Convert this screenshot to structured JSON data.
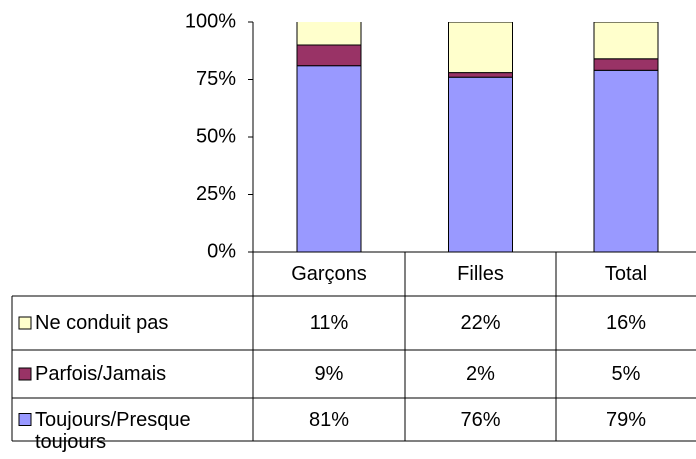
{
  "chart_data": {
    "type": "stacked_bar",
    "categories": [
      "Garçons",
      "Filles",
      "Total"
    ],
    "series": [
      {
        "name": "Ne conduit pas",
        "color": "#ffffcc",
        "values": [
          11,
          22,
          16
        ],
        "value_labels": [
          "11%",
          "22%",
          "16%"
        ]
      },
      {
        "name": "Parfois/Jamais",
        "color": "#993366",
        "values": [
          9,
          2,
          5
        ],
        "value_labels": [
          "9%",
          "2%",
          "5%"
        ]
      },
      {
        "name": "Toujours/Presque toujours",
        "color": "#9999ff",
        "values": [
          81,
          76,
          79
        ],
        "value_labels": [
          "81%",
          "76%",
          "79%"
        ]
      }
    ],
    "ylim": [
      0,
      100
    ],
    "yticks": [
      {
        "value": 0,
        "label": "0%"
      },
      {
        "value": 25,
        "label": "25%"
      },
      {
        "value": 50,
        "label": "50%"
      },
      {
        "value": 75,
        "label": "75%"
      },
      {
        "value": 100,
        "label": "100%"
      }
    ]
  }
}
